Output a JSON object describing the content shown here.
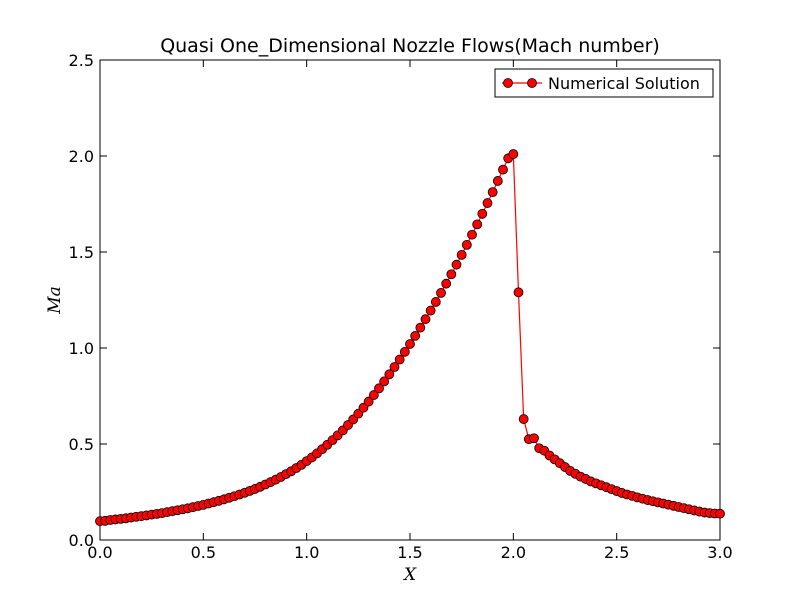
{
  "chart_data": {
    "type": "line",
    "title": "Quasi One_Dimensional Nozzle Flows(Mach number)",
    "xlabel": "X",
    "ylabel": "Ma",
    "xlim": [
      0.0,
      3.0
    ],
    "ylim": [
      0.0,
      2.5
    ],
    "xticks": [
      "0.0",
      "0.5",
      "1.0",
      "1.5",
      "2.0",
      "2.5",
      "3.0"
    ],
    "yticks": [
      "0.0",
      "0.5",
      "1.0",
      "1.5",
      "2.0",
      "2.5"
    ],
    "grid": false,
    "legend_position": "top-right",
    "series": [
      {
        "name": "Numerical Solution",
        "color": "#ff0000",
        "marker": "circle",
        "x": [
          0.0,
          0.025,
          0.05,
          0.075,
          0.1,
          0.125,
          0.15,
          0.175,
          0.2,
          0.225,
          0.25,
          0.275,
          0.3,
          0.325,
          0.35,
          0.375,
          0.4,
          0.425,
          0.45,
          0.475,
          0.5,
          0.525,
          0.55,
          0.575,
          0.6,
          0.625,
          0.65,
          0.675,
          0.7,
          0.725,
          0.75,
          0.775,
          0.8,
          0.825,
          0.85,
          0.875,
          0.9,
          0.925,
          0.95,
          0.975,
          1.0,
          1.025,
          1.05,
          1.075,
          1.1,
          1.125,
          1.15,
          1.175,
          1.2,
          1.225,
          1.25,
          1.275,
          1.3,
          1.325,
          1.35,
          1.375,
          1.4,
          1.425,
          1.45,
          1.475,
          1.5,
          1.525,
          1.55,
          1.575,
          1.6,
          1.625,
          1.65,
          1.675,
          1.7,
          1.725,
          1.75,
          1.775,
          1.8,
          1.825,
          1.85,
          1.875,
          1.9,
          1.925,
          1.95,
          1.975,
          2.0,
          2.025,
          2.05,
          2.075,
          2.1,
          2.125,
          2.15,
          2.175,
          2.2,
          2.225,
          2.25,
          2.275,
          2.3,
          2.325,
          2.35,
          2.375,
          2.4,
          2.425,
          2.45,
          2.475,
          2.5,
          2.525,
          2.55,
          2.575,
          2.6,
          2.625,
          2.65,
          2.675,
          2.7,
          2.725,
          2.75,
          2.775,
          2.8,
          2.825,
          2.85,
          2.875,
          2.9,
          2.925,
          2.95,
          2.975,
          3.0
        ],
        "y": [
          0.098,
          0.1,
          0.104,
          0.107,
          0.11,
          0.113,
          0.117,
          0.121,
          0.124,
          0.128,
          0.132,
          0.136,
          0.14,
          0.145,
          0.15,
          0.155,
          0.16,
          0.165,
          0.171,
          0.177,
          0.183,
          0.19,
          0.197,
          0.204,
          0.212,
          0.22,
          0.228,
          0.237,
          0.246,
          0.256,
          0.266,
          0.277,
          0.289,
          0.301,
          0.314,
          0.328,
          0.343,
          0.358,
          0.375,
          0.392,
          0.411,
          0.43,
          0.451,
          0.473,
          0.496,
          0.52,
          0.545,
          0.571,
          0.599,
          0.628,
          0.658,
          0.689,
          0.721,
          0.755,
          0.79,
          0.826,
          0.863,
          0.901,
          0.94,
          0.98,
          1.021,
          1.063,
          1.106,
          1.15,
          1.195,
          1.24,
          1.287,
          1.335,
          1.384,
          1.434,
          1.485,
          1.537,
          1.59,
          1.644,
          1.699,
          1.755,
          1.812,
          1.87,
          1.929,
          1.988,
          2.01,
          1.29,
          0.63,
          0.525,
          0.53,
          0.478,
          0.465,
          0.44,
          0.42,
          0.4,
          0.38,
          0.36,
          0.345,
          0.33,
          0.318,
          0.305,
          0.295,
          0.285,
          0.275,
          0.265,
          0.255,
          0.245,
          0.237,
          0.23,
          0.222,
          0.215,
          0.208,
          0.202,
          0.196,
          0.19,
          0.184,
          0.178,
          0.172,
          0.166,
          0.16,
          0.154,
          0.148,
          0.143,
          0.14,
          0.138,
          0.137
        ]
      }
    ]
  }
}
